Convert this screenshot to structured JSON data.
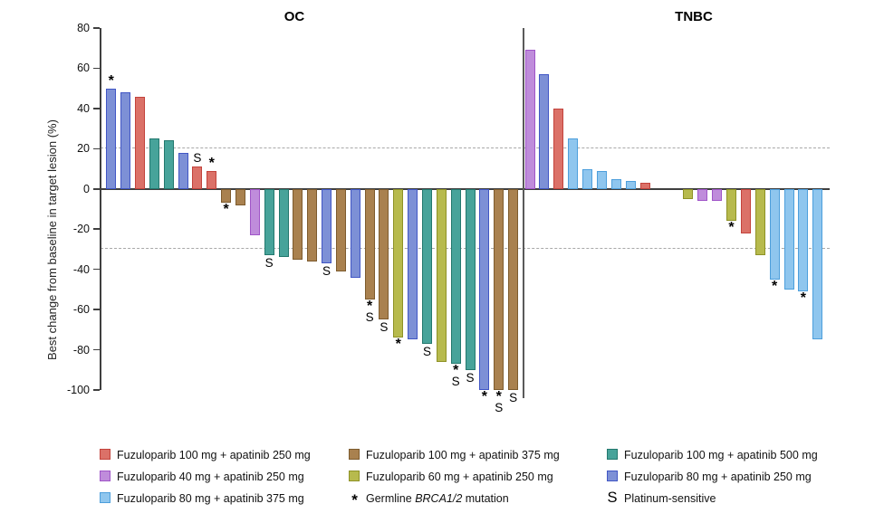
{
  "chart_data": {
    "type": "bar",
    "variant": "waterfall",
    "ylabel": "Best change from baseline in target lesion (%)",
    "ylim": [
      -100,
      80
    ],
    "yticks": [
      80,
      60,
      40,
      20,
      0,
      -20,
      -40,
      -60,
      -80,
      -100
    ],
    "reference_lines": [
      20,
      -30
    ],
    "grid": "dashed-reference-only",
    "legend_position": "bottom",
    "marker_meanings": {
      "*": "Germline BRCA1/2 mutation",
      "S": "Platinum-sensitive"
    },
    "panels": [
      {
        "title": "OC",
        "bars": [
          {
            "value": 50,
            "series": "fz80_ap250",
            "mark": "*"
          },
          {
            "value": 48,
            "series": "fz80_ap250",
            "mark": null
          },
          {
            "value": 46,
            "series": "fz100_ap250",
            "mark": null
          },
          {
            "value": 25,
            "series": "fz100_ap500",
            "mark": null
          },
          {
            "value": 24,
            "series": "fz100_ap500",
            "mark": null
          },
          {
            "value": 18,
            "series": "fz80_ap250",
            "mark": null
          },
          {
            "value": 11,
            "series": "fz100_ap250",
            "mark": "S"
          },
          {
            "value": 9,
            "series": "fz100_ap250",
            "mark": "*"
          },
          {
            "value": -7,
            "series": "fz100_ap375",
            "mark": "*"
          },
          {
            "value": -8,
            "series": "fz100_ap375",
            "mark": null
          },
          {
            "value": -23,
            "series": "fz40_ap250",
            "mark": null
          },
          {
            "value": -33,
            "series": "fz100_ap500",
            "mark": "S"
          },
          {
            "value": -34,
            "series": "fz100_ap500",
            "mark": null
          },
          {
            "value": -35,
            "series": "fz100_ap375",
            "mark": null
          },
          {
            "value": -36,
            "series": "fz100_ap375",
            "mark": null
          },
          {
            "value": -37,
            "series": "fz80_ap250",
            "mark": "S"
          },
          {
            "value": -41,
            "series": "fz100_ap375",
            "mark": null
          },
          {
            "value": -44,
            "series": "fz80_ap250",
            "mark": null
          },
          {
            "value": -55,
            "series": "fz100_ap375",
            "mark": "*S"
          },
          {
            "value": -65,
            "series": "fz100_ap375",
            "mark": "S"
          },
          {
            "value": -74,
            "series": "fz60_ap250",
            "mark": "*"
          },
          {
            "value": -75,
            "series": "fz80_ap250",
            "mark": null
          },
          {
            "value": -77,
            "series": "fz100_ap500",
            "mark": "S"
          },
          {
            "value": -86,
            "series": "fz60_ap250",
            "mark": null
          },
          {
            "value": -87,
            "series": "fz100_ap500",
            "mark": "*S"
          },
          {
            "value": -90,
            "series": "fz100_ap500",
            "mark": "S"
          },
          {
            "value": -100,
            "series": "fz80_ap250",
            "mark": "*"
          },
          {
            "value": -100,
            "series": "fz100_ap375",
            "mark": "*S"
          },
          {
            "value": -100,
            "series": "fz100_ap375",
            "mark": "S"
          }
        ]
      },
      {
        "title": "TNBC",
        "bars": [
          {
            "value": 69,
            "series": "fz40_ap250",
            "mark": null
          },
          {
            "value": 57,
            "series": "fz80_ap250",
            "mark": null
          },
          {
            "value": 40,
            "series": "fz100_ap250",
            "mark": null
          },
          {
            "value": 25,
            "series": "fz80_ap375",
            "mark": null
          },
          {
            "value": 10,
            "series": "fz80_ap375",
            "mark": null
          },
          {
            "value": 9,
            "series": "fz80_ap375",
            "mark": null
          },
          {
            "value": 5,
            "series": "fz80_ap375",
            "mark": null
          },
          {
            "value": 4,
            "series": "fz80_ap375",
            "mark": null
          },
          {
            "value": 3,
            "series": "fz100_ap250",
            "mark": null
          },
          {
            "value": 0,
            "series": null,
            "mark": null
          },
          {
            "value": 0,
            "series": null,
            "mark": null
          },
          {
            "value": -5,
            "series": "fz60_ap250",
            "mark": null
          },
          {
            "value": -6,
            "series": "fz40_ap250",
            "mark": null
          },
          {
            "value": -6,
            "series": "fz40_ap250",
            "mark": null
          },
          {
            "value": -16,
            "series": "fz60_ap250",
            "mark": "*"
          },
          {
            "value": -22,
            "series": "fz100_ap250",
            "mark": null
          },
          {
            "value": -33,
            "series": "fz60_ap250",
            "mark": null
          },
          {
            "value": -45,
            "series": "fz80_ap375",
            "mark": "*"
          },
          {
            "value": -50,
            "series": "fz80_ap375",
            "mark": null
          },
          {
            "value": -51,
            "series": "fz80_ap375",
            "mark": "*"
          },
          {
            "value": -75,
            "series": "fz80_ap375",
            "mark": null
          }
        ]
      }
    ]
  },
  "colors": {
    "fz100_ap250": {
      "fill": "#DB7168",
      "stroke": "#C3433C"
    },
    "fz100_ap375": {
      "fill": "#A9814F",
      "stroke": "#7D5B2E"
    },
    "fz100_ap500": {
      "fill": "#47A39A",
      "stroke": "#23786E"
    },
    "fz40_ap250": {
      "fill": "#BF8CDB",
      "stroke": "#A055C8"
    },
    "fz60_ap250": {
      "fill": "#B7BA4D",
      "stroke": "#8E9226"
    },
    "fz80_ap250": {
      "fill": "#7D90D6",
      "stroke": "#4156C5"
    },
    "fz80_ap375": {
      "fill": "#8FC6EE",
      "stroke": "#4D9FDC"
    }
  },
  "legend": {
    "columns": [
      {
        "x": 110,
        "items": [
          {
            "swatch": "fz100_ap250",
            "label": "Fuzuloparib 100 mg + apatinib 250 mg"
          },
          {
            "swatch": "fz40_ap250",
            "label": "Fuzuloparib 40 mg + apatinib 250 mg"
          },
          {
            "swatch": "fz80_ap375",
            "label": "Fuzuloparib 80 mg + apatinib 375 mg"
          }
        ]
      },
      {
        "x": 385,
        "items": [
          {
            "swatch": "fz100_ap375",
            "label": "Fuzuloparib 100 mg + apatinib 375 mg"
          },
          {
            "swatch": "fz60_ap250",
            "label": "Fuzuloparib 60 mg + apatinib 250 mg"
          },
          {
            "symbol": "*",
            "label_prefix": "Germline ",
            "label_italic": "BRCA1/2",
            "label_suffix": " mutation"
          }
        ]
      },
      {
        "x": 670,
        "items": [
          {
            "swatch": "fz100_ap500",
            "label": "Fuzuloparib 100 mg + apatinib 500 mg"
          },
          {
            "swatch": "fz80_ap250",
            "label": "Fuzuloparib 80 mg + apatinib 250 mg"
          },
          {
            "symbol": "S",
            "label": "Platinum-sensitive"
          }
        ]
      }
    ]
  }
}
